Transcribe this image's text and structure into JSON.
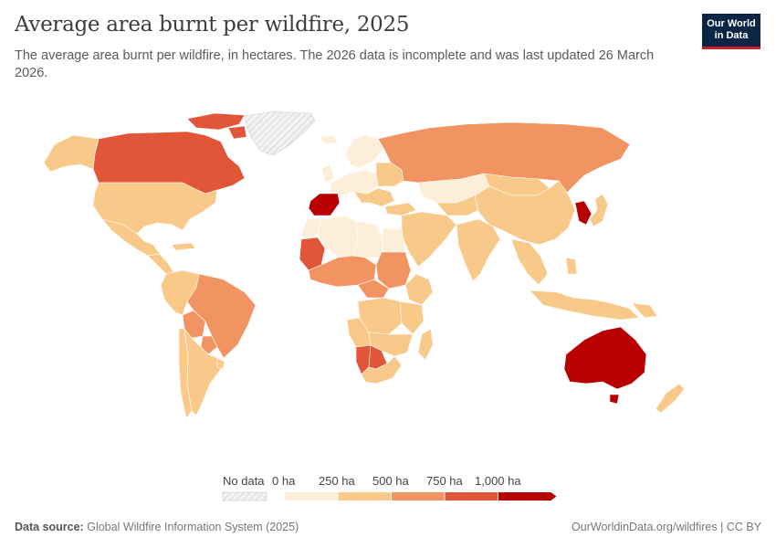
{
  "header": {
    "title": "Average area burnt per wildfire, 2025",
    "subtitle": "The average area burnt per wildfire, in hectares. The 2026 data is incomplete and was last updated 26 March 2026.",
    "logo_line1": "Our World",
    "logo_line2": "in Data"
  },
  "legend": {
    "no_data_label": "No data",
    "ticks": [
      "0 ha",
      "250 ha",
      "500 ha",
      "750 ha",
      "1,000 ha"
    ],
    "colors": [
      "#fdeed9",
      "#f9c98a",
      "#f29462",
      "#e15639",
      "#b80000"
    ],
    "no_data_color": "#e8e8e8"
  },
  "footer": {
    "source_label": "Data source:",
    "source_value": "Global Wildfire Information System (2025)",
    "url": "OurWorldinData.org/wildfires | CC BY"
  },
  "map_data": {
    "year": 2025,
    "regions": [
      {
        "region": "Canada",
        "level": 4
      },
      {
        "region": "United States",
        "level": 2
      },
      {
        "region": "Alaska",
        "level": 2
      },
      {
        "region": "Mexico",
        "level": 2
      },
      {
        "region": "Greenland",
        "level": 0
      },
      {
        "region": "Central America",
        "level": 2
      },
      {
        "region": "Brazil",
        "level": 3
      },
      {
        "region": "Bolivia",
        "level": 3
      },
      {
        "region": "Paraguay",
        "level": 3
      },
      {
        "region": "Argentina",
        "level": 2
      },
      {
        "region": "Chile",
        "level": 2
      },
      {
        "region": "Western South America",
        "level": 2
      },
      {
        "region": "Spain",
        "level": 5
      },
      {
        "region": "Portugal",
        "level": 5
      },
      {
        "region": "Western Europe",
        "level": 1
      },
      {
        "region": "Scandinavia",
        "level": 1
      },
      {
        "region": "Eastern Europe",
        "level": 2
      },
      {
        "region": "Russia",
        "level": 3
      },
      {
        "region": "Kazakhstan",
        "level": 1
      },
      {
        "region": "Mongolia",
        "level": 2
      },
      {
        "region": "China",
        "level": 2
      },
      {
        "region": "North Korea",
        "level": 5
      },
      {
        "region": "South Korea",
        "level": 5
      },
      {
        "region": "Japan",
        "level": 2
      },
      {
        "region": "India",
        "level": 2
      },
      {
        "region": "Middle East",
        "level": 2
      },
      {
        "region": "Southeast Asia",
        "level": 2
      },
      {
        "region": "Indonesia",
        "level": 2
      },
      {
        "region": "Australia",
        "level": 5
      },
      {
        "region": "New Zealand",
        "level": 2
      },
      {
        "region": "Algeria",
        "level": 1
      },
      {
        "region": "Libya",
        "level": 1
      },
      {
        "region": "Mauritania",
        "level": 4
      },
      {
        "region": "Sahel",
        "level": 3
      },
      {
        "region": "Sudan",
        "level": 3
      },
      {
        "region": "Central African Republic",
        "level": 3
      },
      {
        "region": "DR Congo",
        "level": 2
      },
      {
        "region": "East Africa",
        "level": 2
      },
      {
        "region": "Angola",
        "level": 2
      },
      {
        "region": "Namibia",
        "level": 4
      },
      {
        "region": "Botswana",
        "level": 4
      },
      {
        "region": "South Africa",
        "level": 2
      },
      {
        "region": "Madagascar",
        "level": 2
      }
    ]
  }
}
